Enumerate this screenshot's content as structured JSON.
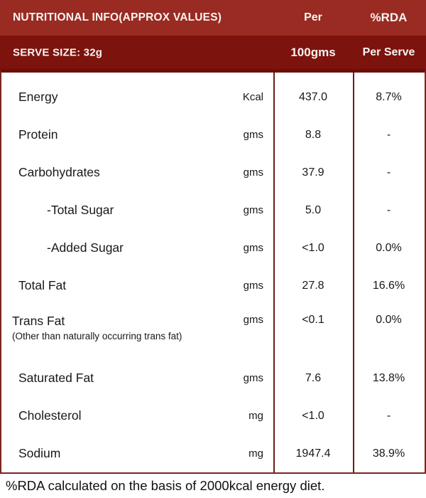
{
  "header": {
    "title": "NUTRITIONAL INFO(APPROX VALUES)",
    "per_label": "Per",
    "rda_label": "%RDA",
    "serve_size": "SERVE SIZE: 32g",
    "per_sublabel": "100gms",
    "rda_sublabel": "Per Serve"
  },
  "table": {
    "rows": [
      {
        "label": "Energy",
        "unit": "Kcal",
        "per100": "437.0",
        "rda": "8.7%"
      },
      {
        "label": "Protein",
        "unit": "gms",
        "per100": "8.8",
        "rda": "-"
      },
      {
        "label": "Carbohydrates",
        "unit": "gms",
        "per100": "37.9",
        "rda": "-"
      },
      {
        "label": "-Total Sugar",
        "unit": "gms",
        "per100": "5.0",
        "rda": "-",
        "indent": true
      },
      {
        "label": "-Added Sugar",
        "unit": "gms",
        "per100": "<1.0",
        "rda": "0.0%",
        "indent": true
      },
      {
        "label": "Total Fat",
        "unit": "gms",
        "per100": "27.8",
        "rda": "16.6%"
      },
      {
        "label": "Trans Fat",
        "unit": "gms",
        "per100": "<0.1",
        "rda": "0.0%",
        "note": "(Other than naturally occurring trans fat)"
      },
      {
        "label": "Saturated Fat",
        "unit": "gms",
        "per100": "7.6",
        "rda": "13.8%"
      },
      {
        "label": "Cholesterol",
        "unit": "mg",
        "per100": "<1.0",
        "rda": "-"
      },
      {
        "label": "Sodium",
        "unit": "mg",
        "per100": "1947.4",
        "rda": "38.9%"
      }
    ]
  },
  "footer": {
    "note": "%RDA calculated on the basis of 2000kcal energy diet."
  },
  "colors": {
    "header_band_top": "#992b22",
    "header_band_bottom": "#7c130c",
    "table_border": "#6a0f09",
    "table_rule": "#6d1c17",
    "header_text": "#f8f4f2",
    "body_text": "#181818"
  }
}
